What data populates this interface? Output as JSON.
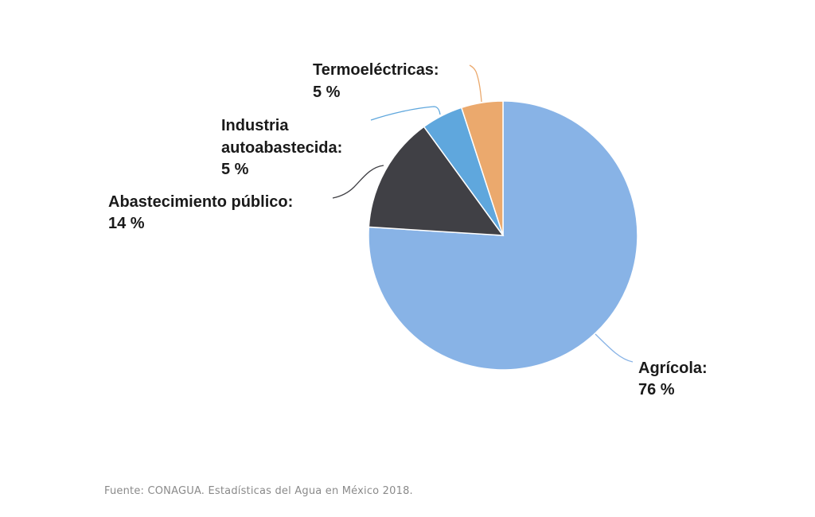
{
  "chart_data": {
    "type": "pie",
    "title": "",
    "start_angle_deg": 0,
    "direction": "clockwise",
    "slices": [
      {
        "name": "Agrícola",
        "label": "Agrícola:",
        "value": 76,
        "value_text": "76 %",
        "color": "#88b3e6"
      },
      {
        "name": "Abastecimiento público",
        "label": "Abastecimiento público:",
        "value": 14,
        "value_text": "14 %",
        "color": "#404045"
      },
      {
        "name": "Industria autoabastecida",
        "label_lines": [
          "Industria",
          "autoabastecida:"
        ],
        "value": 5,
        "value_text": "5 %",
        "color": "#5fa7dd"
      },
      {
        "name": "Termoeléctricas",
        "label": "Termoeléctricas:",
        "value": 5,
        "value_text": "5 %",
        "color": "#eba96d"
      }
    ]
  },
  "source": "Fuente: CONAGUA. Estadísticas del Agua en México 2018."
}
